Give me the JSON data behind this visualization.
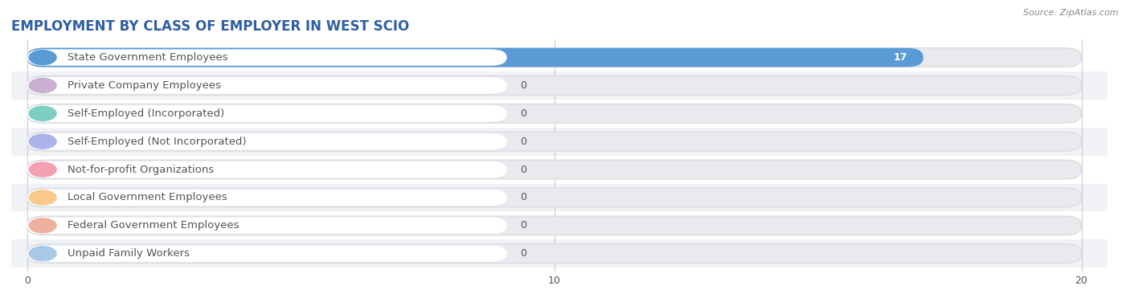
{
  "title": "EMPLOYMENT BY CLASS OF EMPLOYER IN WEST SCIO",
  "source": "Source: ZipAtlas.com",
  "categories": [
    "State Government Employees",
    "Private Company Employees",
    "Self-Employed (Incorporated)",
    "Self-Employed (Not Incorporated)",
    "Not-for-profit Organizations",
    "Local Government Employees",
    "Federal Government Employees",
    "Unpaid Family Workers"
  ],
  "values": [
    17,
    0,
    0,
    0,
    0,
    0,
    0,
    0
  ],
  "bar_colors": [
    "#5b9bd5",
    "#c9afd4",
    "#7ecec4",
    "#aab4e8",
    "#f4a0b0",
    "#f8c98a",
    "#f0b0a0",
    "#a8c8e8"
  ],
  "row_colors": [
    "#ffffff",
    "#f0f2f5"
  ],
  "xlim_max": 20,
  "xticks": [
    0,
    10,
    20
  ],
  "background_color": "#ffffff",
  "bar_bg_color": "#e8eaee",
  "bar_bg_outline": "#d5d8de",
  "title_color": "#2e5fa3",
  "label_color": "#555555",
  "value_color_inside": "#ffffff",
  "value_color_outside": "#555555",
  "grid_color": "#cccccc",
  "title_fontsize": 12,
  "label_fontsize": 9.5,
  "value_fontsize": 9,
  "source_fontsize": 8
}
